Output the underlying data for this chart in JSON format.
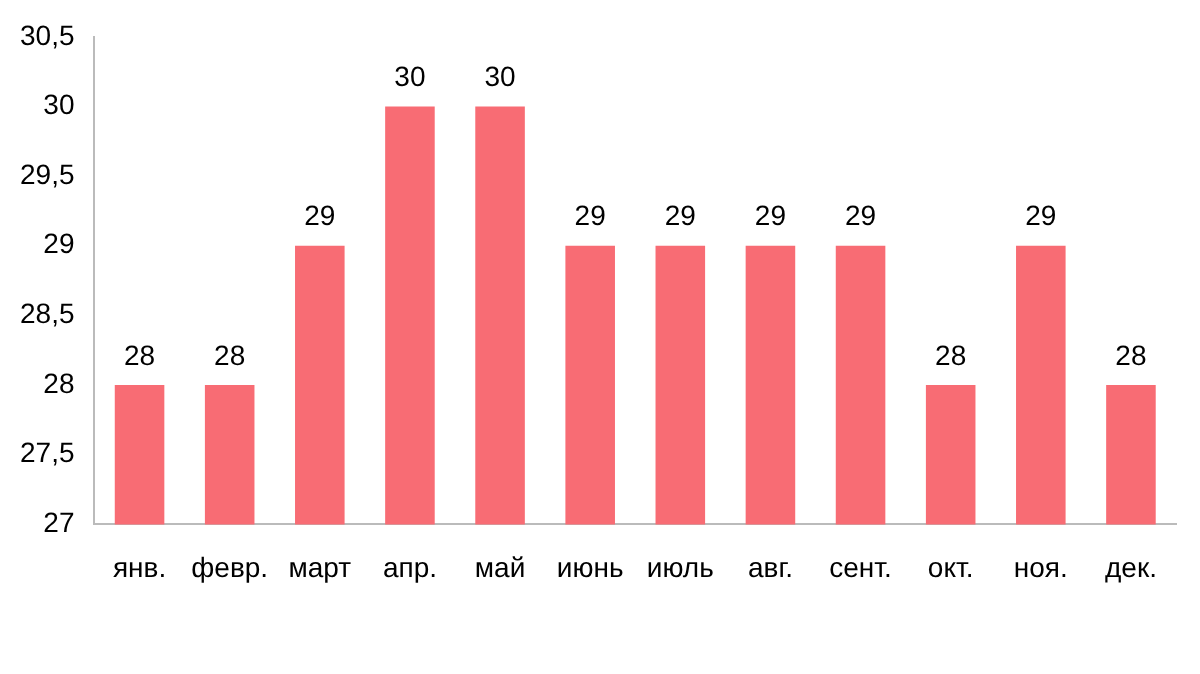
{
  "chart_data": {
    "type": "bar",
    "categories": [
      "янв.",
      "февр.",
      "март",
      "апр.",
      "май",
      "июнь",
      "июль",
      "авг.",
      "сент.",
      "окт.",
      "ноя.",
      "дек."
    ],
    "values": [
      28,
      28,
      29,
      30,
      30,
      29,
      29,
      29,
      29,
      28,
      29,
      28
    ],
    "color": "#f86c74",
    "ylim": [
      27,
      30.5
    ],
    "yticks": [
      27,
      {
        "value": 27.5,
        "label": "27,5"
      },
      28,
      {
        "value": 28.5,
        "label": "28,5"
      },
      29,
      {
        "value": 29.5,
        "label": "29,5"
      },
      30,
      {
        "value": 30.5,
        "label": "30,5"
      }
    ],
    "grid": false,
    "legend": false,
    "data_labels": true
  }
}
